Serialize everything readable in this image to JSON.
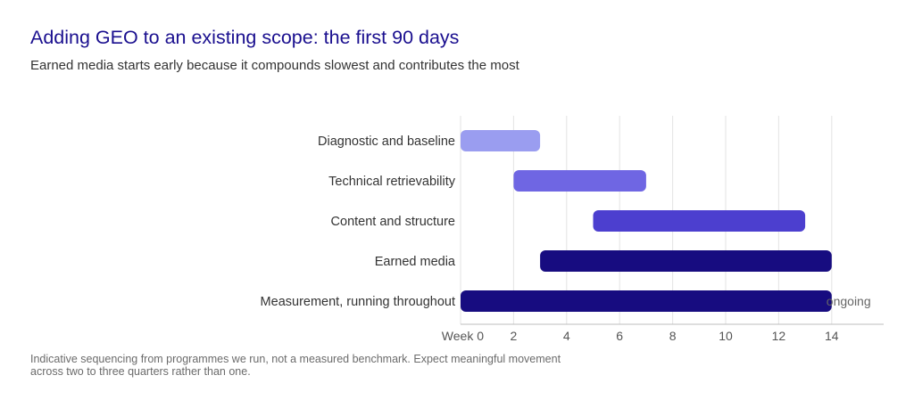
{
  "title": "Adding GEO to an existing scope: the first 90 days",
  "subtitle": "Earned media starts early because it compounds slowest and contributes the most",
  "footnote": "Indicative sequencing from programmes we run, not a measured benchmark. Expect meaningful movement across two to three quarters rather than one.",
  "chart_data": {
    "type": "bar",
    "orientation": "horizontal-gantt",
    "xlabel": "",
    "ylabel": "",
    "xlim": [
      0,
      16
    ],
    "x_ticks": [
      {
        "value": 0,
        "label": "Week 0"
      },
      {
        "value": 2,
        "label": "2"
      },
      {
        "value": 4,
        "label": "4"
      },
      {
        "value": 6,
        "label": "6"
      },
      {
        "value": 8,
        "label": "8"
      },
      {
        "value": 10,
        "label": "10"
      },
      {
        "value": 12,
        "label": "12"
      },
      {
        "value": 14,
        "label": "14"
      }
    ],
    "grid": "vertical",
    "categories": [
      "Diagnostic and baseline",
      "Technical retrievability",
      "Content and structure",
      "Earned media",
      "Measurement, running throughout"
    ],
    "tasks": [
      {
        "category": "Diagnostic and baseline",
        "start": 0,
        "end": 3,
        "color": "#9a9df0"
      },
      {
        "category": "Technical retrievability",
        "start": 2,
        "end": 7,
        "color": "#6f66e3"
      },
      {
        "category": "Content and structure",
        "start": 5,
        "end": 13,
        "color": "#4c3fcf"
      },
      {
        "category": "Earned media",
        "start": 3,
        "end": 14,
        "color": "#170c80"
      },
      {
        "category": "Measurement, running throughout",
        "start": 0,
        "end": 14,
        "color": "#170c80"
      }
    ],
    "annotations": [
      {
        "text": "ongoing",
        "x": 14,
        "category": "Measurement, running throughout"
      }
    ]
  }
}
